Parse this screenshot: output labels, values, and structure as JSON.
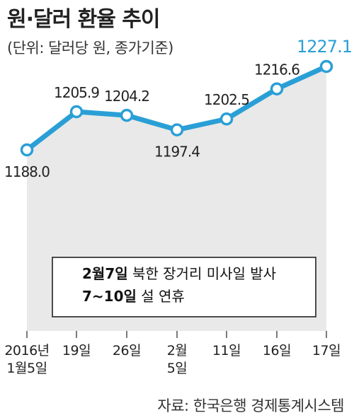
{
  "title": "원·달러 환율 추이",
  "subtitle": "(단위: 달러당 원, 종가기준)",
  "source": "자료: 한국은행 경제통계시스템",
  "colors": {
    "line": "#2a9fd6",
    "area": "#e9e9e9",
    "highlight": "#2a9fd6"
  },
  "chart_data": {
    "type": "line",
    "categories": [
      "2016년 1월5일",
      "19일",
      "26일",
      "2월 5일",
      "11일",
      "16일",
      "17일"
    ],
    "tick_lines": [
      [
        "2016년",
        "1월5일"
      ],
      [
        "19일"
      ],
      [
        "26일"
      ],
      [
        "2월",
        "5일"
      ],
      [
        "11일"
      ],
      [
        "16일"
      ],
      [
        "17일"
      ]
    ],
    "values": [
      1188.0,
      1205.9,
      1204.2,
      1197.4,
      1202.5,
      1216.6,
      1227.1
    ],
    "labels": [
      "1188.0",
      "1205.9",
      "1204.2",
      "1197.4",
      "1202.5",
      "1216.6",
      "1227.1"
    ],
    "annotations": [
      {
        "bold": "2월7일",
        "text": "북한 장거리 미사일 발사"
      },
      {
        "bold": "7~10일",
        "text": "설 연휴"
      }
    ]
  }
}
